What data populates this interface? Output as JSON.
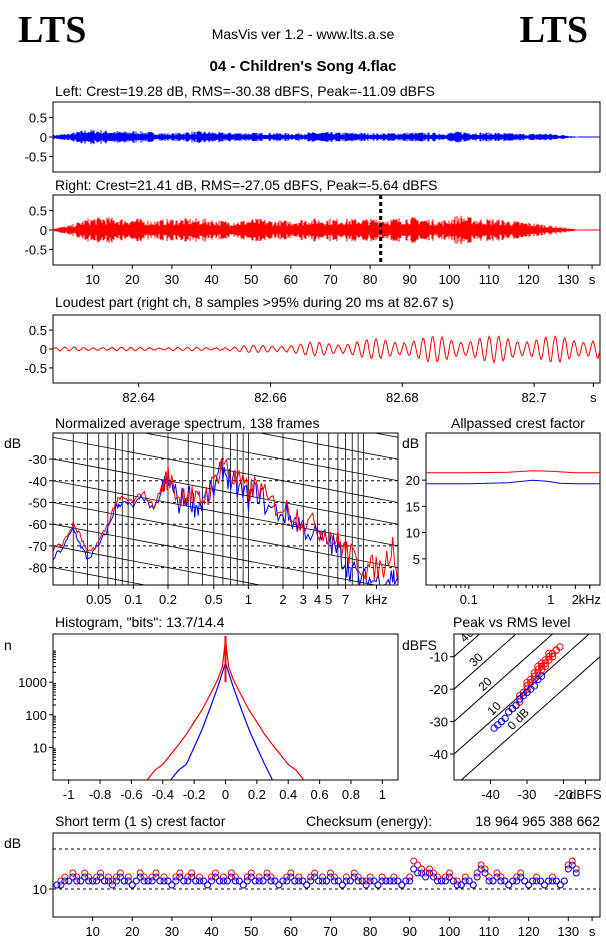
{
  "header": {
    "logo_left": "LTS",
    "logo_right": "LTS",
    "app_title": "MasVis ver 1.2 - www.lts.a.se",
    "track_title": "04 - Children's Song 4.flac"
  },
  "colors": {
    "left": "#0000ff",
    "right": "#ff0000",
    "grid": "#000000"
  },
  "checksum": {
    "label": "Checksum (energy):",
    "value": "18 964 965 388 662"
  },
  "chart_data": [
    {
      "id": "left_waveform",
      "type": "line",
      "title": "Left: Crest=19.28 dB, RMS=-30.38 dBFS, Peak=-11.09 dBFS",
      "ylim": [
        -0.9,
        0.9
      ],
      "yticks": [
        "0.5",
        "0",
        "-0.5"
      ],
      "ytick_values": [
        0.5,
        0,
        -0.5
      ],
      "xlim": [
        0,
        138
      ],
      "duration": 132.5,
      "envelope_peak_abs": [
        0.05,
        0.1,
        0.2,
        0.18,
        0.15,
        0.16,
        0.12,
        0.1,
        0.14,
        0.15,
        0.12,
        0.12,
        0.11,
        0.12,
        0.1,
        0.12,
        0.13,
        0.12,
        0.12,
        0.1,
        0.11,
        0.12,
        0.12,
        0.1,
        0.15,
        0.12,
        0.12,
        0.1,
        0.08,
        0.1,
        0.06,
        0.01
      ],
      "series": [
        {
          "color": "#0000ff"
        }
      ]
    },
    {
      "id": "right_waveform",
      "type": "line",
      "title": "Right: Crest=21.41 dB, RMS=-27.05 dBFS, Peak=-5.64 dBFS",
      "ylim": [
        -0.9,
        0.9
      ],
      "yticks": [
        "0.5",
        "0",
        "-0.5"
      ],
      "ytick_values": [
        0.5,
        0,
        -0.5
      ],
      "xlim": [
        0,
        138
      ],
      "duration": 132.5,
      "xticks": [
        "10",
        "20",
        "30",
        "40",
        "50",
        "60",
        "70",
        "80",
        "90",
        "100",
        "110",
        "120",
        "130",
        "s"
      ],
      "xtick_values": [
        10,
        20,
        30,
        40,
        50,
        60,
        70,
        80,
        90,
        100,
        110,
        120,
        130,
        136
      ],
      "marker_x": 82.67,
      "envelope_peak_abs": [
        0.05,
        0.12,
        0.3,
        0.35,
        0.3,
        0.3,
        0.25,
        0.3,
        0.3,
        0.3,
        0.25,
        0.25,
        0.3,
        0.25,
        0.25,
        0.3,
        0.3,
        0.3,
        0.3,
        0.3,
        0.3,
        0.35,
        0.3,
        0.25,
        0.4,
        0.3,
        0.3,
        0.25,
        0.2,
        0.15,
        0.08,
        0.01
      ],
      "series": [
        {
          "color": "#ff0000"
        }
      ]
    },
    {
      "id": "loudest_part",
      "type": "line",
      "title": "Loudest part (right ch, 8 samples >95% during 20 ms at 82.67 s)",
      "ylim": [
        -0.9,
        0.9
      ],
      "yticks": [
        "0.5",
        "0",
        "-0.5"
      ],
      "ytick_values": [
        0.5,
        0,
        -0.5
      ],
      "xlim": [
        82.627,
        82.71
      ],
      "xticks": [
        "82.64",
        "82.66",
        "82.68",
        "82.7",
        "s"
      ],
      "xtick_values": [
        82.64,
        82.66,
        82.68,
        82.7,
        82.709
      ],
      "amp_start": 0.05,
      "amp_end": 0.35,
      "cycles": 58,
      "series": [
        {
          "color": "#ff0000"
        }
      ]
    },
    {
      "id": "spectrum",
      "type": "line",
      "title": "Normalized average spectrum, 138 frames",
      "ylabel": "dB",
      "xscale": "log",
      "xlim": [
        0.02,
        20
      ],
      "ylim": [
        -88,
        -18
      ],
      "yticks": [
        "-30",
        "-40",
        "-50",
        "-60",
        "-70",
        "-80"
      ],
      "ytick_values": [
        -30,
        -40,
        -50,
        -60,
        -70,
        -80
      ],
      "xticks": [
        "0.05",
        "0.1",
        "0.2",
        "0.5",
        "1",
        "2",
        "3",
        "4",
        "5",
        "7",
        "kHz"
      ],
      "xtick_values": [
        0.05,
        0.1,
        0.2,
        0.5,
        1,
        2,
        3,
        4,
        5,
        7,
        13
      ],
      "series": [
        {
          "name": "right",
          "color": "#ff0000",
          "x": [
            0.02,
            0.025,
            0.03,
            0.035,
            0.04,
            0.05,
            0.06,
            0.07,
            0.08,
            0.1,
            0.12,
            0.15,
            0.18,
            0.2,
            0.25,
            0.3,
            0.35,
            0.4,
            0.5,
            0.6,
            0.7,
            0.8,
            1,
            1.2,
            1.5,
            2,
            2.5,
            3,
            4,
            5,
            6,
            7,
            8,
            10,
            12,
            15,
            18,
            20
          ],
          "y": [
            -72,
            -68,
            -60,
            -66,
            -74,
            -68,
            -60,
            -50,
            -48,
            -50,
            -45,
            -52,
            -42,
            -38,
            -48,
            -44,
            -50,
            -48,
            -42,
            -30,
            -38,
            -40,
            -45,
            -42,
            -50,
            -52,
            -55,
            -58,
            -62,
            -64,
            -68,
            -72,
            -75,
            -80,
            -80,
            -80,
            -68,
            -85
          ]
        },
        {
          "name": "left",
          "color": "#0000ff",
          "x": [
            0.02,
            0.025,
            0.03,
            0.035,
            0.04,
            0.05,
            0.06,
            0.07,
            0.08,
            0.1,
            0.12,
            0.15,
            0.18,
            0.2,
            0.25,
            0.3,
            0.35,
            0.4,
            0.5,
            0.6,
            0.7,
            0.8,
            1,
            1.2,
            1.5,
            2,
            2.5,
            3,
            4,
            5,
            6,
            7,
            8,
            10,
            12,
            15,
            18,
            20
          ],
          "y": [
            -76,
            -70,
            -62,
            -70,
            -76,
            -70,
            -62,
            -52,
            -50,
            -52,
            -47,
            -54,
            -44,
            -40,
            -50,
            -46,
            -52,
            -50,
            -44,
            -34,
            -40,
            -43,
            -48,
            -45,
            -53,
            -55,
            -58,
            -61,
            -66,
            -68,
            -72,
            -78,
            -82,
            -86,
            -86,
            -86,
            -84,
            -86
          ]
        }
      ]
    },
    {
      "id": "allpassed_crest",
      "type": "line",
      "title": "Allpassed crest factor",
      "ylabel": "dB",
      "xscale": "log",
      "xlim": [
        0.03,
        4
      ],
      "ylim": [
        0,
        29
      ],
      "yticks": [
        "20",
        "15",
        "10",
        "5"
      ],
      "ytick_values": [
        20,
        15,
        10,
        5
      ],
      "xticks": [
        "0.1",
        "1",
        "2",
        "kHz"
      ],
      "xtick_values": [
        0.1,
        1,
        2,
        3
      ],
      "series": [
        {
          "name": "right",
          "color": "#ff0000",
          "x": [
            0.03,
            0.1,
            0.3,
            0.6,
            1,
            2,
            4
          ],
          "y": [
            21.4,
            21.4,
            21.5,
            21.8,
            21.7,
            21.4,
            21.4
          ]
        },
        {
          "name": "left",
          "color": "#0000ff",
          "x": [
            0.03,
            0.1,
            0.3,
            0.6,
            0.9,
            1.3,
            2,
            4
          ],
          "y": [
            19.3,
            19.3,
            19.5,
            20.0,
            19.8,
            19.4,
            19.3,
            19.3
          ]
        }
      ]
    },
    {
      "id": "histogram",
      "type": "line",
      "title": "Histogram, \"bits\": 13.7/14.4",
      "ylabel": "n",
      "yscale": "log",
      "ylim": [
        1,
        30000
      ],
      "xlim": [
        -1.1,
        1.1
      ],
      "yticks": [
        "1000",
        "100",
        "10"
      ],
      "ytick_values": [
        1000,
        100,
        10
      ],
      "xticks": [
        "-1",
        "-0.8",
        "-0.6",
        "-0.4",
        "-0.2",
        "0",
        "0.2",
        "0.4",
        "0.6",
        "0.8",
        "1"
      ],
      "xtick_values": [
        -1,
        -0.8,
        -0.6,
        -0.4,
        -0.2,
        0,
        0.2,
        0.4,
        0.6,
        0.8,
        1
      ],
      "series": [
        {
          "name": "right",
          "color": "#ff0000",
          "x": [
            -0.5,
            -0.45,
            -0.4,
            -0.35,
            -0.3,
            -0.25,
            -0.2,
            -0.15,
            -0.1,
            -0.05,
            -0.02,
            0,
            0.02,
            0.05,
            0.1,
            0.15,
            0.2,
            0.25,
            0.3,
            0.35,
            0.4,
            0.45,
            0.5
          ],
          "y": [
            1,
            2,
            3,
            6,
            12,
            25,
            60,
            140,
            400,
            1200,
            3000,
            20000,
            3000,
            1200,
            400,
            140,
            60,
            25,
            12,
            6,
            3,
            2,
            1
          ]
        },
        {
          "name": "left",
          "color": "#0000ff",
          "x": [
            -0.35,
            -0.3,
            -0.25,
            -0.2,
            -0.15,
            -0.1,
            -0.05,
            -0.02,
            0,
            0.02,
            0.05,
            0.1,
            0.15,
            0.2,
            0.25,
            0.3
          ],
          "y": [
            1,
            2,
            3,
            10,
            35,
            150,
            700,
            2000,
            4000,
            2000,
            700,
            150,
            35,
            10,
            3,
            1
          ]
        }
      ]
    },
    {
      "id": "peak_vs_rms",
      "type": "scatter",
      "title": "Peak vs RMS level",
      "ylabel": "dBFS",
      "xlabel": "dBFS",
      "xlim": [
        -50,
        -10
      ],
      "ylim": [
        -48,
        -3
      ],
      "yticks": [
        "-10",
        "-20",
        "-30",
        "-40"
      ],
      "ytick_values": [
        -10,
        -20,
        -30,
        -40
      ],
      "xticks": [
        "-40",
        "-30",
        "-20",
        "dBFS"
      ],
      "xtick_values": [
        -40,
        -30,
        -20,
        -14
      ],
      "diagonals": [
        "40",
        "30",
        "20",
        "10",
        "0 dB"
      ],
      "series": [
        {
          "name": "right",
          "color": "#ff0000",
          "x": [
            -34,
            -33,
            -32,
            -31,
            -30,
            -30,
            -29,
            -28,
            -28,
            -27,
            -27,
            -26,
            -26,
            -25,
            -25,
            -24,
            -24,
            -23,
            -22,
            -21,
            -32,
            -29,
            -27,
            -25,
            -23,
            -22,
            -30,
            -28,
            -26,
            -24
          ],
          "y": [
            -26,
            -25,
            -22,
            -21,
            -20,
            -18,
            -18,
            -16,
            -15,
            -15,
            -13,
            -14,
            -12,
            -12,
            -11,
            -10,
            -9,
            -9,
            -8,
            -7,
            -24,
            -17,
            -14,
            -13,
            -10,
            -8,
            -19,
            -17,
            -13,
            -11
          ]
        },
        {
          "name": "left",
          "color": "#0000ff",
          "x": [
            -39,
            -38,
            -37,
            -36,
            -35,
            -34,
            -33,
            -32,
            -31,
            -30,
            -29,
            -28,
            -27,
            -26
          ],
          "y": [
            -32,
            -31,
            -30,
            -29,
            -27,
            -26,
            -25,
            -23,
            -22,
            -21,
            -20,
            -19,
            -17,
            -16
          ]
        }
      ]
    },
    {
      "id": "short_term_crest",
      "type": "scatter",
      "title": "Short term (1 s) crest factor",
      "ylabel": "dB",
      "xlim": [
        0,
        138
      ],
      "ylim": [
        3,
        24
      ],
      "yticks": [
        "10"
      ],
      "ytick_values": [
        10
      ],
      "dashed_levels": [
        10,
        20
      ],
      "xticks": [
        "10",
        "20",
        "30",
        "40",
        "50",
        "60",
        "70",
        "80",
        "90",
        "100",
        "110",
        "120",
        "130",
        "s"
      ],
      "xtick_values": [
        10,
        20,
        30,
        40,
        50,
        60,
        70,
        80,
        90,
        100,
        110,
        120,
        130,
        136
      ],
      "series": [
        {
          "name": "right",
          "color": "#ff0000",
          "values": [
            11,
            12,
            13,
            12,
            14,
            13,
            12,
            14,
            13,
            12,
            13,
            14,
            12,
            13,
            12,
            13,
            14,
            12,
            13,
            11,
            12,
            14,
            13,
            12,
            13,
            14,
            12,
            13,
            12,
            11,
            13,
            14,
            12,
            13,
            14,
            12,
            13,
            12,
            11,
            13,
            14,
            12,
            13,
            12,
            14,
            13,
            12,
            11,
            13,
            14,
            12,
            13,
            12,
            14,
            13,
            12,
            11,
            12,
            13,
            14,
            12,
            13,
            12,
            11,
            13,
            14,
            12,
            13,
            12,
            14,
            13,
            12,
            11,
            13,
            12,
            14,
            13,
            12,
            12,
            13,
            12,
            11,
            13,
            12,
            12,
            13,
            12,
            11,
            12,
            13,
            17,
            16,
            15,
            14,
            15,
            14,
            13,
            12,
            13,
            14,
            12,
            12,
            11,
            13,
            12,
            11,
            14,
            16,
            15,
            13,
            12,
            14,
            13,
            12,
            11,
            12,
            13,
            14,
            12,
            11,
            12,
            13,
            12,
            11,
            12,
            13,
            12,
            11,
            12,
            16,
            17,
            15
          ]
        },
        {
          "name": "left",
          "color": "#0000ff",
          "values": [
            11,
            11,
            12,
            12,
            13,
            12,
            12,
            13,
            12,
            12,
            12,
            13,
            12,
            12,
            11,
            12,
            13,
            12,
            12,
            11,
            12,
            13,
            12,
            12,
            12,
            13,
            12,
            12,
            12,
            11,
            12,
            13,
            12,
            12,
            13,
            12,
            12,
            12,
            11,
            12,
            13,
            12,
            12,
            12,
            13,
            12,
            12,
            11,
            12,
            13,
            12,
            12,
            12,
            13,
            12,
            12,
            11,
            12,
            12,
            13,
            12,
            12,
            12,
            11,
            12,
            13,
            12,
            12,
            12,
            13,
            12,
            12,
            11,
            12,
            12,
            13,
            12,
            12,
            11,
            12,
            12,
            11,
            12,
            12,
            12,
            12,
            12,
            11,
            12,
            12,
            15,
            14,
            14,
            13,
            14,
            13,
            12,
            12,
            12,
            13,
            12,
            11,
            11,
            12,
            12,
            11,
            13,
            15,
            14,
            12,
            12,
            13,
            12,
            12,
            11,
            12,
            12,
            13,
            12,
            11,
            12,
            12,
            12,
            11,
            12,
            12,
            12,
            11,
            12,
            15,
            16,
            14
          ]
        }
      ]
    }
  ]
}
